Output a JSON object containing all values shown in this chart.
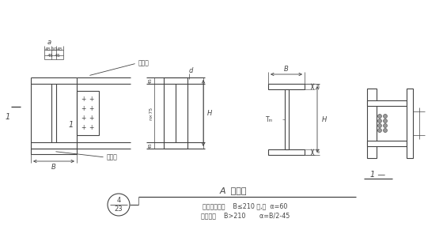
{
  "bg_color": "#ffffff",
  "line_color": "#444444",
  "title_text": "A  型连接",
  "note_line1": "注：当主梁宽    B≤210 时,取  α=60",
  "note_line2": "当主梁宽    B>210       α=B/2-45",
  "label_lian_jie_ban": "连接板",
  "label_zhi_cheng_ban": "支承板",
  "label_B": "B",
  "label_H": "H",
  "label_Tw": "Tₘ",
  "label_Tf": "Tₗ",
  "label_a": "a",
  "circle_num": "4",
  "circle_den": "23"
}
